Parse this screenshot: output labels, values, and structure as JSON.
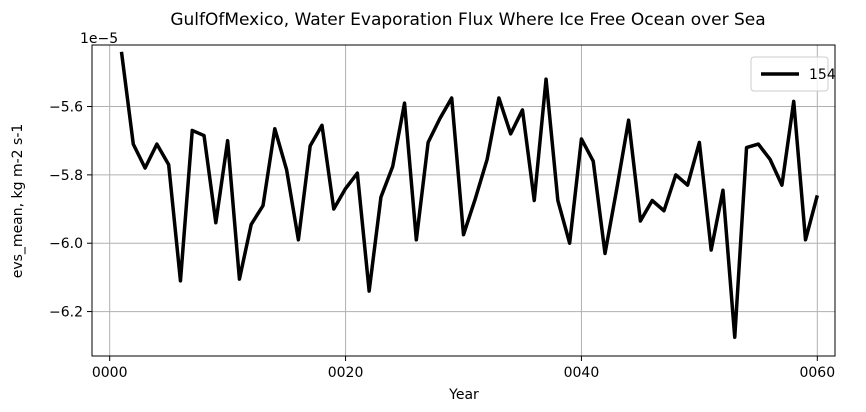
{
  "chart_data": {
    "type": "line",
    "title": "GulfOfMexico, Water Evaporation Flux Where Ice Free Ocean over Sea",
    "xlabel": "Year",
    "ylabel": "evs_mean, kg m-2 s-1",
    "offset_label": "1e−5",
    "xlim": [
      -1.5,
      61.5
    ],
    "ylim": [
      -6.33,
      -5.42
    ],
    "x_ticks": [
      0,
      20,
      40,
      60
    ],
    "x_tick_labels": [
      "0000",
      "0020",
      "0040",
      "0060"
    ],
    "y_ticks": [
      -6.2,
      -6.0,
      -5.8,
      -5.6
    ],
    "y_tick_labels": [
      "−6.2",
      "−6.0",
      "−5.8",
      "−5.6"
    ],
    "grid": true,
    "legend_position": "top-right",
    "series": [
      {
        "name": "154",
        "color": "#000000",
        "x": [
          1,
          2,
          3,
          4,
          5,
          6,
          7,
          8,
          9,
          10,
          11,
          12,
          13,
          14,
          15,
          16,
          17,
          18,
          19,
          20,
          21,
          22,
          23,
          24,
          25,
          26,
          27,
          28,
          29,
          30,
          31,
          32,
          33,
          34,
          35,
          36,
          37,
          38,
          39,
          40,
          41,
          42,
          43,
          44,
          45,
          46,
          47,
          48,
          49,
          50,
          51,
          52,
          53,
          54,
          55,
          56,
          57,
          58,
          59,
          60
        ],
        "values": [
          -5.44,
          -5.71,
          -5.78,
          -5.71,
          -5.77,
          -6.11,
          -5.67,
          -5.685,
          -5.94,
          -5.7,
          -6.105,
          -5.945,
          -5.89,
          -5.665,
          -5.785,
          -5.99,
          -5.715,
          -5.655,
          -5.9,
          -5.84,
          -5.795,
          -6.14,
          -5.865,
          -5.775,
          -5.59,
          -5.99,
          -5.705,
          -5.635,
          -5.575,
          -5.975,
          -5.87,
          -5.755,
          -5.575,
          -5.68,
          -5.61,
          -5.875,
          -5.52,
          -5.875,
          -6.0,
          -5.695,
          -5.76,
          -6.03,
          -5.84,
          -5.64,
          -5.935,
          -5.875,
          -5.905,
          -5.8,
          -5.83,
          -5.705,
          -6.02,
          -5.845,
          -6.275,
          -5.72,
          -5.71,
          -5.755,
          -5.83,
          -5.585,
          -5.99,
          -5.86
        ]
      }
    ]
  }
}
